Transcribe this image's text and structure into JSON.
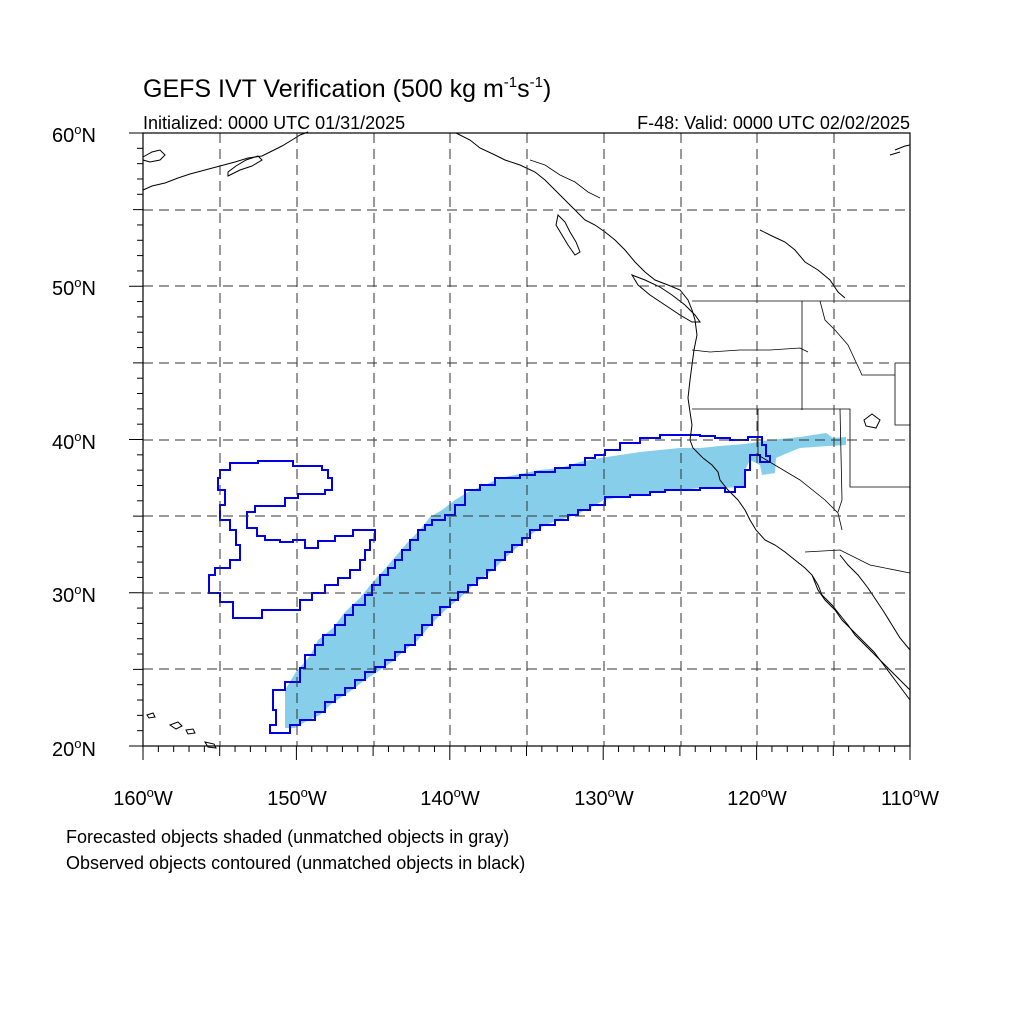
{
  "title": {
    "main": "GEFS IVT Verification (500 kg m",
    "sup1": "-1",
    "mid": "s",
    "sup2": "-1",
    "end": ")"
  },
  "init_label": "Initialized: 0000 UTC 01/31/2025",
  "valid_label": "F-48: Valid: 0000 UTC 02/02/2025",
  "lat_labels": [
    {
      "text": "60",
      "deg": "o",
      "hem": "N"
    },
    {
      "text": "50",
      "deg": "o",
      "hem": "N"
    },
    {
      "text": "40",
      "deg": "o",
      "hem": "N"
    },
    {
      "text": "30",
      "deg": "o",
      "hem": "N"
    },
    {
      "text": "20",
      "deg": "o",
      "hem": "N"
    }
  ],
  "lon_labels": [
    {
      "text": "160",
      "deg": "o",
      "hem": "W"
    },
    {
      "text": "150",
      "deg": "o",
      "hem": "W"
    },
    {
      "text": "140",
      "deg": "o",
      "hem": "W"
    },
    {
      "text": "130",
      "deg": "o",
      "hem": "W"
    },
    {
      "text": "120",
      "deg": "o",
      "hem": "W"
    },
    {
      "text": "110",
      "deg": "o",
      "hem": "W"
    }
  ],
  "captions": {
    "forecast": "Forecasted objects shaded (unmatched objects in gray)",
    "observed": "Observed objects contoured (unmatched objects in black)"
  },
  "colors": {
    "forecast_fill": "#87ceeb",
    "observed_contour": "#0000e6",
    "grid": "#333333"
  },
  "map_extent": {
    "lon_min": -160,
    "lon_max": -110,
    "lat_min": 20,
    "lat_max": 60
  }
}
